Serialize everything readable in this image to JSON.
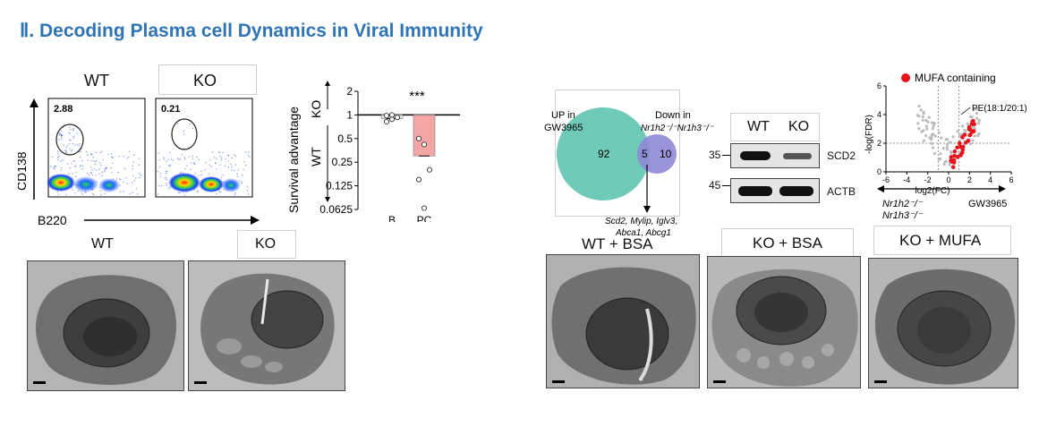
{
  "heading": "Ⅱ. Decoding Plasma cell Dynamics in Viral Immunity",
  "flow": {
    "wt_label": "WT",
    "ko_label": "KO",
    "wt_gate_value": "2.88",
    "ko_gate_value": "0.21",
    "y_axis": "CD138",
    "x_axis": "B220"
  },
  "survival_chart": {
    "type": "bar",
    "ylabel": "Survival advantage",
    "ko_side": "KO",
    "wt_side": "WT",
    "categories": [
      "B",
      "PC"
    ],
    "values": [
      0.9,
      0.3
    ],
    "yticks": [
      "2",
      "1",
      "0.5",
      "0.25",
      "0.125",
      "0.0625"
    ],
    "ytick_values": [
      2,
      1,
      0.5,
      0.25,
      0.125,
      0.0625
    ],
    "significance": "***",
    "bar_colors": [
      "#e6e6e6",
      "#f4a6a6"
    ],
    "points": {
      "B": [
        0.82,
        0.88,
        0.93,
        0.98,
        1.0
      ],
      "PC": [
        0.5,
        0.42,
        0.2,
        0.15,
        0.065
      ]
    }
  },
  "em_left": {
    "wt_label": "WT",
    "ko_label": "KO"
  },
  "venn": {
    "left_label_1": "UP in",
    "left_label_2": "GW3965",
    "right_label_1": "Down in",
    "right_label_2": "Nr1h2⁻/⁻Nr1h3⁻/⁻",
    "left_only": "92",
    "overlap": "5",
    "right_only": "10",
    "genes_1": "Scd2, Mylip, Iglv3,",
    "genes_2": "Abca1, Abcg1",
    "left_color": "#6fcab8",
    "right_color": "#8f88d6"
  },
  "western": {
    "wt": "WT",
    "ko": "KO",
    "marker_top": "35",
    "marker_bottom": "45",
    "band_top": "SCD2",
    "band_bottom": "ACTB"
  },
  "volcano": {
    "legend": "MUFA containing",
    "annotation": "PE(18:1/20:1)",
    "ylabel": "-log(FDR)",
    "xlabel": "log2(FC)",
    "xticks": [
      "-6",
      "-4",
      "-2",
      "0",
      "2",
      "4",
      "6"
    ],
    "yticks": [
      "0",
      "2",
      "4",
      "6"
    ],
    "left_group_1": "Nr1h2⁻/⁻",
    "left_group_2": "Nr1h3⁻/⁻",
    "right_group": "GW3965",
    "mufa_color": "#e8141c"
  },
  "em_right": {
    "label_1": "WT + BSA",
    "label_2": "KO + BSA",
    "label_3": "KO + MUFA"
  }
}
